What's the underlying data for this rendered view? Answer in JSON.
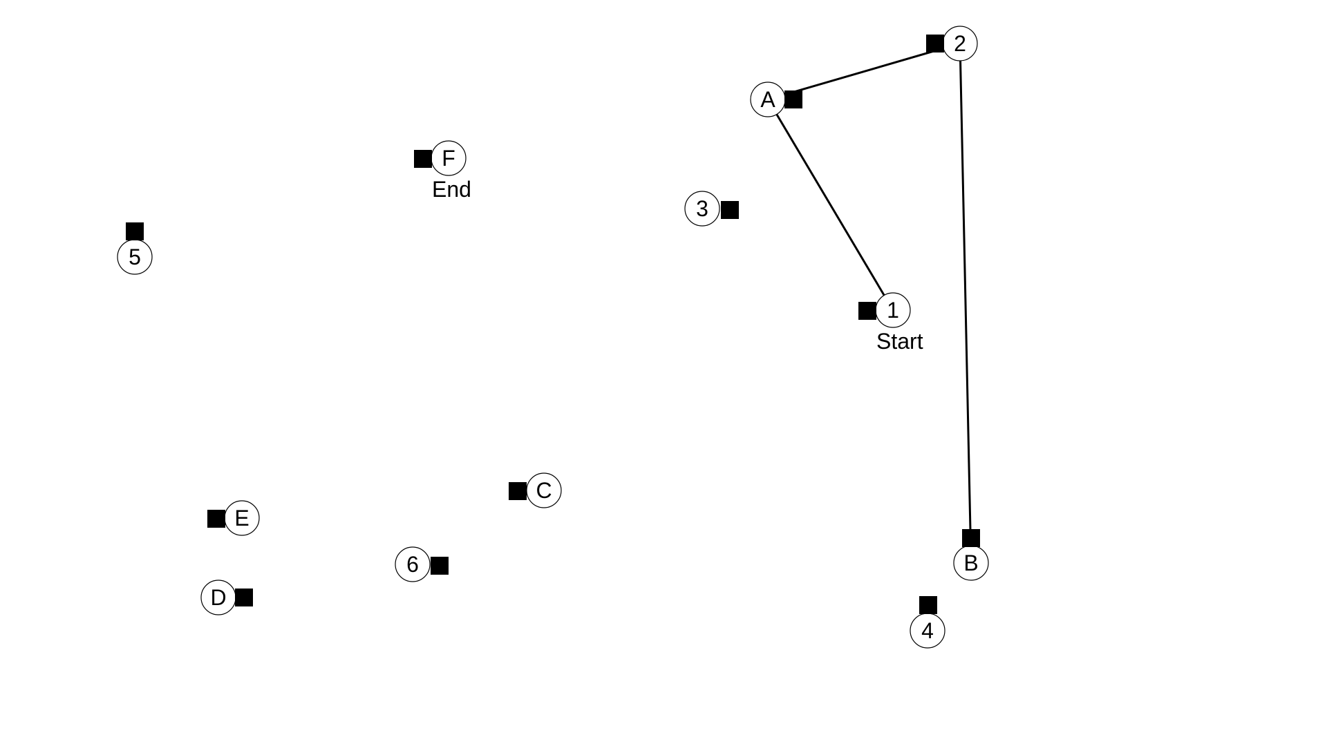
{
  "puzzle": {
    "type": "connect-the-dots",
    "start_node": "1",
    "end_node": "F",
    "start_label": "Start",
    "end_label": "End",
    "colors": {
      "line": "#000000",
      "node_stroke": "#000000",
      "handle": "#000000",
      "background": "#ffffff"
    },
    "nodes": [
      {
        "id": "1",
        "label": "1"
      },
      {
        "id": "2",
        "label": "2"
      },
      {
        "id": "3",
        "label": "3"
      },
      {
        "id": "4",
        "label": "4"
      },
      {
        "id": "5",
        "label": "5"
      },
      {
        "id": "6",
        "label": "6"
      },
      {
        "id": "A",
        "label": "A"
      },
      {
        "id": "B",
        "label": "B"
      },
      {
        "id": "C",
        "label": "C"
      },
      {
        "id": "D",
        "label": "D"
      },
      {
        "id": "E",
        "label": "E"
      },
      {
        "id": "F",
        "label": "F"
      }
    ],
    "connections": [
      [
        "1",
        "A"
      ],
      [
        "A",
        "2"
      ],
      [
        "2",
        "B"
      ]
    ]
  }
}
